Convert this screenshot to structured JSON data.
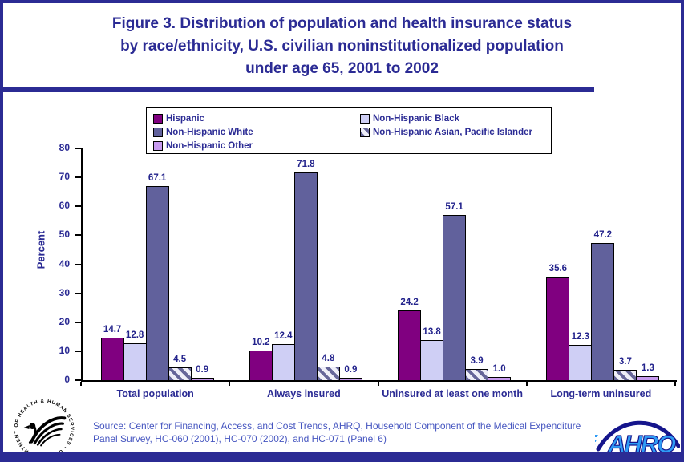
{
  "title_lines": [
    "Figure 3. Distribution of population and health insurance status",
    "by race/ethnicity, U.S. civilian noninstitutionalized population",
    "under age 65, 2001 to 2002"
  ],
  "chart_data": {
    "type": "bar",
    "title": "Figure 3. Distribution of population and health insurance status by race/ethnicity, U.S. civilian noninstitutionalized population under age 65, 2001 to 2002",
    "xlabel": "",
    "ylabel": "Percent",
    "ylim": [
      0,
      80
    ],
    "yticks": [
      0,
      10,
      20,
      30,
      40,
      50,
      60,
      70,
      80
    ],
    "grid": false,
    "legend_position": "top",
    "categories": [
      "Total population",
      "Always insured",
      "Uninsured at least one month",
      "Long-term uninsured"
    ],
    "series": [
      {
        "name": "Hispanic",
        "color": "#800080",
        "pattern": "solid",
        "values": [
          14.7,
          10.2,
          24.2,
          35.6
        ]
      },
      {
        "name": "Non-Hispanic Black",
        "color": "#CFCFF5",
        "pattern": "solid",
        "values": [
          12.8,
          12.4,
          13.8,
          12.3
        ]
      },
      {
        "name": "Non-Hispanic White",
        "color": "#61619C",
        "pattern": "solid",
        "values": [
          67.1,
          71.8,
          57.1,
          47.2
        ]
      },
      {
        "name": "Non-Hispanic Asian, Pacific Islander",
        "color": "#666699",
        "pattern": "diagonal-hatch",
        "hatch_bg": "#EFEFF8",
        "values": [
          4.5,
          4.8,
          3.9,
          3.7
        ]
      },
      {
        "name": "Non-Hispanic Other",
        "color": "#C79AEF",
        "pattern": "solid",
        "values": [
          0.9,
          0.9,
          1.0,
          1.3
        ]
      }
    ]
  },
  "legend": {
    "columns": [
      [
        0,
        2,
        4
      ],
      [
        1,
        3
      ]
    ]
  },
  "source_text": "Source: Center for Financing, Access, and Cost Trends, AHRQ, Household Component of the Medical Expenditure Panel Survey, HC-060 (2001), HC-070 (2002), and HC-071 (Panel 6)",
  "logos": {
    "hhs": "hhs-eagle-logo",
    "ahrq_text": "AHRQ"
  },
  "colors": {
    "navy": "#2B2B94",
    "value_label": "#23238C",
    "source_blue": "#4656C0",
    "ahrq_fill": "#2E9BF5",
    "ahrq_stroke": "#15158C"
  }
}
